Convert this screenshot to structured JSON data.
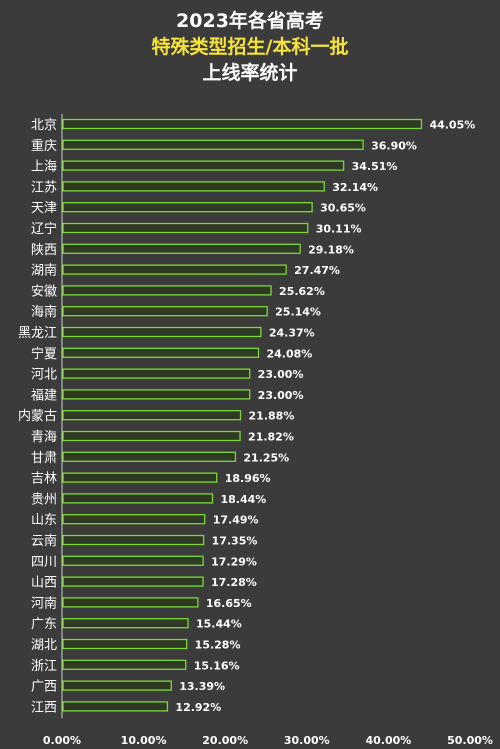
{
  "title": {
    "line1": "2023年各省高考",
    "line2": "特殊类型招生/本科一批",
    "line3": "上线率统计"
  },
  "colors": {
    "background": "#3b3b3b",
    "bar_fill": "#2e3a24",
    "bar_stroke": "#7cd63a",
    "text": "#ffffff",
    "title_highlight": "#f5e33a",
    "axis": "#cfcfcf"
  },
  "chart_data": {
    "type": "bar",
    "orientation": "horizontal",
    "title": "2023年各省高考 特殊类型招生/本科一批 上线率统计",
    "categories": [
      "北京",
      "重庆",
      "上海",
      "江苏",
      "天津",
      "辽宁",
      "陕西",
      "湖南",
      "安徽",
      "海南",
      "黑龙江",
      "宁夏",
      "河北",
      "福建",
      "内蒙古",
      "青海",
      "甘肃",
      "吉林",
      "贵州",
      "山东",
      "云南",
      "四川",
      "山西",
      "河南",
      "广东",
      "湖北",
      "浙江",
      "广西",
      "江西"
    ],
    "values": [
      44.05,
      36.9,
      34.51,
      32.14,
      30.65,
      30.11,
      29.18,
      27.47,
      25.62,
      25.14,
      24.37,
      24.08,
      23.0,
      23.0,
      21.88,
      21.82,
      21.25,
      18.96,
      18.44,
      17.49,
      17.35,
      17.29,
      17.28,
      16.65,
      15.44,
      15.28,
      15.16,
      13.39,
      12.92
    ],
    "value_labels": [
      "44.05%",
      "36.90%",
      "34.51%",
      "32.14%",
      "30.65%",
      "30.11%",
      "29.18%",
      "27.47%",
      "25.62%",
      "25.14%",
      "24.37%",
      "24.08%",
      "23.00%",
      "23.00%",
      "21.88%",
      "21.82%",
      "21.25%",
      "18.96%",
      "18.44%",
      "17.49%",
      "17.35%",
      "17.29%",
      "17.28%",
      "16.65%",
      "15.44%",
      "15.28%",
      "15.16%",
      "13.39%",
      "12.92%"
    ],
    "xlim": [
      0,
      50
    ],
    "xticks": [
      "0.00%",
      "10.00%",
      "20.00%",
      "30.00%",
      "40.00%",
      "50.00%"
    ],
    "grid": false,
    "legend": false
  }
}
